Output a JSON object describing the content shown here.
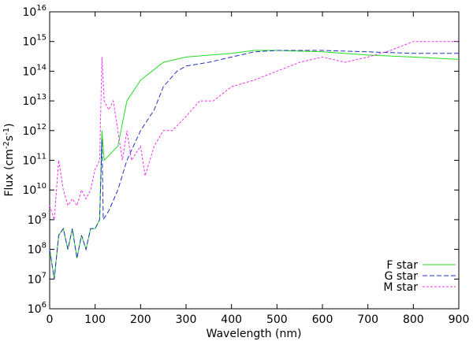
{
  "chart_data": {
    "type": "line",
    "xlabel": "Wavelength (nm)",
    "ylabel": [
      "Flux (cm",
      "-2",
      "s",
      "-1",
      ")"
    ],
    "xlim": [
      0,
      900
    ],
    "xticks": [
      0,
      100,
      200,
      300,
      400,
      500,
      600,
      700,
      800,
      900
    ],
    "ylim": [
      1000000.0,
      1e+16
    ],
    "log_y": true,
    "yticks": [
      {
        "value": 1000000.0,
        "label": "10",
        "sup": "6"
      },
      {
        "value": 10000000.0,
        "label": "10",
        "sup": "7"
      },
      {
        "value": 100000000.0,
        "label": "10",
        "sup": "8"
      },
      {
        "value": 1000000000.0,
        "label": "10",
        "sup": "9"
      },
      {
        "value": 10000000000.0,
        "label": "10",
        "sup": "10"
      },
      {
        "value": 100000000000.0,
        "label": "10",
        "sup": "11"
      },
      {
        "value": 1000000000000.0,
        "label": "10",
        "sup": "12"
      },
      {
        "value": 10000000000000.0,
        "label": "10",
        "sup": "13"
      },
      {
        "value": 100000000000000.0,
        "label": "10",
        "sup": "14"
      },
      {
        "value": 1000000000000000.0,
        "label": "10",
        "sup": "15"
      },
      {
        "value": 1e+16,
        "label": "10",
        "sup": "16"
      }
    ],
    "legend": "lower right",
    "series": [
      {
        "name": "F star",
        "color": "#22dd22",
        "dash": "none",
        "x": [
          0,
          10,
          20,
          30,
          40,
          50,
          60,
          70,
          80,
          90,
          100,
          110,
          115,
          120,
          150,
          170,
          200,
          250,
          300,
          400,
          450,
          500,
          600,
          700,
          800,
          900
        ],
        "values": [
          100000000.0,
          10000000.0,
          300000000.0,
          500000000.0,
          100000000.0,
          500000000.0,
          50000000.0,
          300000000.0,
          100000000.0,
          500000000.0,
          500000000.0,
          1000000000.0,
          1000000000000.0,
          100000000000.0,
          300000000000.0,
          10000000000000.0,
          50000000000000.0,
          200000000000000.0,
          300000000000000.0,
          400000000000000.0,
          500000000000000.0,
          500000000000000.0,
          450000000000000.0,
          350000000000000.0,
          300000000000000.0,
          250000000000000.0
        ]
      },
      {
        "name": "G star",
        "color": "#2233bb",
        "dash": "6,3",
        "x": [
          0,
          10,
          20,
          30,
          40,
          50,
          60,
          70,
          80,
          90,
          100,
          110,
          115,
          118,
          130,
          150,
          170,
          200,
          230,
          250,
          280,
          300,
          350,
          400,
          450,
          500,
          600,
          700,
          800,
          900
        ],
        "values": [
          100000000.0,
          10000000.0,
          300000000.0,
          500000000.0,
          100000000.0,
          500000000.0,
          50000000.0,
          300000000.0,
          100000000.0,
          500000000.0,
          500000000.0,
          1000000000.0,
          500000000000.0,
          1000000000.0,
          2000000000.0,
          10000000000.0,
          100000000000.0,
          1000000000000.0,
          5000000000000.0,
          30000000000000.0,
          100000000000000.0,
          150000000000000.0,
          200000000000000.0,
          300000000000000.0,
          450000000000000.0,
          500000000000000.0,
          500000000000000.0,
          450000000000000.0,
          400000000000000.0,
          400000000000000.0
        ]
      },
      {
        "name": "M star",
        "color": "#ee33ee",
        "dash": "3,2",
        "x": [
          0,
          10,
          20,
          30,
          40,
          50,
          60,
          70,
          80,
          90,
          100,
          110,
          115,
          120,
          130,
          140,
          150,
          160,
          170,
          180,
          200,
          210,
          230,
          250,
          270,
          300,
          330,
          360,
          400,
          450,
          500,
          550,
          600,
          650,
          700,
          750,
          800,
          850,
          900
        ],
        "values": [
          3000000000.0,
          1000000000.0,
          100000000000.0,
          10000000000.0,
          3000000000.0,
          5000000000.0,
          3000000000.0,
          10000000000.0,
          5000000000.0,
          10000000000.0,
          50000000000.0,
          100000000000.0,
          300000000000000.0,
          10000000000000.0,
          5000000000000.0,
          10000000000000.0,
          1000000000000.0,
          100000000000.0,
          1000000000000.0,
          100000000000.0,
          300000000000.0,
          30000000000.0,
          300000000000.0,
          1000000000000.0,
          1000000000000.0,
          3000000000000.0,
          10000000000000.0,
          10000000000000.0,
          30000000000000.0,
          50000000000000.0,
          100000000000000.0,
          200000000000000.0,
          300000000000000.0,
          200000000000000.0,
          300000000000000.0,
          500000000000000.0,
          1000000000000000.0,
          1000000000000000.0,
          1000000000000000.0
        ]
      }
    ]
  }
}
